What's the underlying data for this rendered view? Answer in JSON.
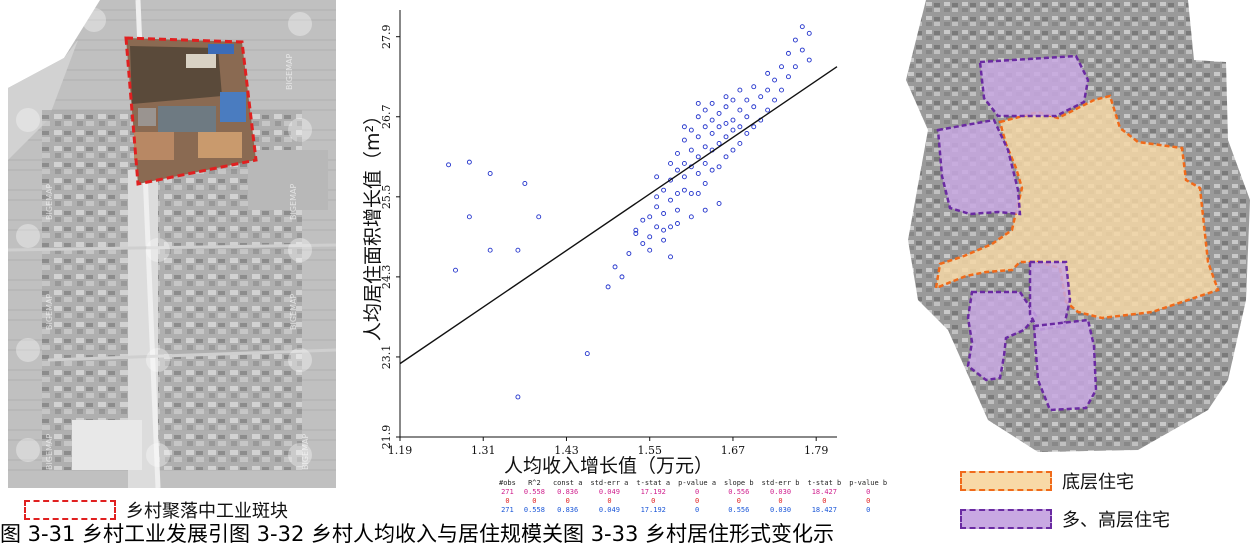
{
  "left_panel": {
    "legend_label": "乡村聚落中工业斑块",
    "watermark": "BIGEMAP",
    "colors": {
      "highlight_border": "#e02020"
    }
  },
  "right_panel": {
    "legend": [
      {
        "label": "底层住宅",
        "color": "#f8d9a6",
        "border": "#f06a1a"
      },
      {
        "label": "多、高层住宅",
        "color": "#c8a8e2",
        "border": "#6a2aa2"
      }
    ]
  },
  "chart_data": {
    "type": "scatter",
    "xlabel": "人均收入增长值（万元）",
    "ylabel": "人均居住面积增长值（m²）",
    "x_ticks": [
      1.19,
      1.31,
      1.43,
      1.55,
      1.67,
      1.79
    ],
    "y_ticks": [
      21.9,
      23.1,
      24.3,
      25.5,
      26.7,
      27.9
    ],
    "xlim": [
      1.19,
      1.82
    ],
    "ylim": [
      21.9,
      28.3
    ],
    "grid": false,
    "point_color": "#2233cc",
    "line_color": "#111111",
    "regression": {
      "intercept": 0.836,
      "slope": 0.556,
      "x0": 1.19,
      "x1": 1.82,
      "y0": 23.0,
      "y1": 27.45
    },
    "points": [
      [
        1.26,
        25.98
      ],
      [
        1.29,
        26.02
      ],
      [
        1.32,
        25.85
      ],
      [
        1.37,
        25.7
      ],
      [
        1.29,
        25.2
      ],
      [
        1.39,
        25.2
      ],
      [
        1.27,
        24.4
      ],
      [
        1.32,
        24.7
      ],
      [
        1.36,
        24.7
      ],
      [
        1.36,
        22.5
      ],
      [
        1.46,
        23.15
      ],
      [
        1.49,
        24.15
      ],
      [
        1.5,
        24.45
      ],
      [
        1.51,
        24.3
      ],
      [
        1.52,
        24.65
      ],
      [
        1.53,
        24.95
      ],
      [
        1.53,
        25.0
      ],
      [
        1.54,
        24.8
      ],
      [
        1.54,
        25.15
      ],
      [
        1.55,
        24.7
      ],
      [
        1.55,
        24.9
      ],
      [
        1.55,
        25.2
      ],
      [
        1.56,
        25.05
      ],
      [
        1.56,
        25.35
      ],
      [
        1.56,
        25.5
      ],
      [
        1.57,
        25.0
      ],
      [
        1.57,
        25.25
      ],
      [
        1.57,
        25.6
      ],
      [
        1.58,
        24.6
      ],
      [
        1.58,
        25.05
      ],
      [
        1.58,
        25.45
      ],
      [
        1.58,
        25.75
      ],
      [
        1.59,
        25.3
      ],
      [
        1.59,
        25.55
      ],
      [
        1.59,
        25.9
      ],
      [
        1.59,
        26.15
      ],
      [
        1.6,
        25.6
      ],
      [
        1.6,
        25.8
      ],
      [
        1.6,
        26.0
      ],
      [
        1.6,
        26.35
      ],
      [
        1.61,
        25.2
      ],
      [
        1.61,
        25.55
      ],
      [
        1.61,
        25.95
      ],
      [
        1.61,
        26.2
      ],
      [
        1.61,
        26.5
      ],
      [
        1.62,
        25.55
      ],
      [
        1.62,
        25.85
      ],
      [
        1.62,
        26.1
      ],
      [
        1.62,
        26.4
      ],
      [
        1.62,
        26.7
      ],
      [
        1.63,
        25.7
      ],
      [
        1.63,
        26.0
      ],
      [
        1.63,
        26.25
      ],
      [
        1.63,
        26.55
      ],
      [
        1.63,
        26.8
      ],
      [
        1.64,
        25.9
      ],
      [
        1.64,
        26.2
      ],
      [
        1.64,
        26.45
      ],
      [
        1.64,
        26.65
      ],
      [
        1.64,
        26.9
      ],
      [
        1.65,
        25.95
      ],
      [
        1.65,
        26.3
      ],
      [
        1.65,
        26.55
      ],
      [
        1.65,
        26.75
      ],
      [
        1.66,
        26.1
      ],
      [
        1.66,
        26.4
      ],
      [
        1.66,
        26.6
      ],
      [
        1.66,
        26.85
      ],
      [
        1.67,
        26.2
      ],
      [
        1.67,
        26.5
      ],
      [
        1.67,
        26.65
      ],
      [
        1.67,
        26.95
      ],
      [
        1.68,
        26.3
      ],
      [
        1.68,
        26.55
      ],
      [
        1.68,
        26.8
      ],
      [
        1.69,
        26.45
      ],
      [
        1.69,
        26.7
      ],
      [
        1.69,
        26.95
      ],
      [
        1.7,
        26.55
      ],
      [
        1.7,
        26.85
      ],
      [
        1.71,
        26.65
      ],
      [
        1.71,
        27.0
      ],
      [
        1.72,
        26.8
      ],
      [
        1.72,
        27.1
      ],
      [
        1.73,
        26.95
      ],
      [
        1.73,
        27.25
      ],
      [
        1.74,
        27.1
      ],
      [
        1.74,
        27.45
      ],
      [
        1.75,
        27.3
      ],
      [
        1.75,
        27.65
      ],
      [
        1.76,
        27.45
      ],
      [
        1.76,
        27.85
      ],
      [
        1.77,
        27.7
      ],
      [
        1.77,
        28.05
      ],
      [
        1.78,
        27.55
      ],
      [
        1.78,
        27.95
      ],
      [
        1.65,
        25.4
      ],
      [
        1.63,
        25.3
      ],
      [
        1.59,
        25.1
      ],
      [
        1.57,
        24.85
      ],
      [
        1.6,
        26.55
      ],
      [
        1.62,
        26.9
      ],
      [
        1.66,
        27.0
      ],
      [
        1.68,
        27.1
      ],
      [
        1.7,
        27.15
      ],
      [
        1.72,
        27.35
      ],
      [
        1.56,
        25.8
      ],
      [
        1.58,
        26.0
      ]
    ],
    "stats_table": {
      "headers": [
        "#obs",
        "R^2",
        "const a",
        "std-err a",
        "t-stat a",
        "p-value a",
        "slope b",
        "std-err b",
        "t-stat b",
        "p-value b"
      ],
      "rows": [
        [
          "271",
          "0.558",
          "0.836",
          "0.049",
          "17.192",
          "0",
          "0.556",
          "0.030",
          "18.427",
          "0"
        ],
        [
          "0",
          "0",
          "0",
          "0",
          "0",
          "0",
          "0",
          "0",
          "0",
          "0"
        ],
        [
          "271",
          "0.558",
          "0.836",
          "0.049",
          "17.192",
          "0",
          "0.556",
          "0.030",
          "18.427",
          "0"
        ]
      ]
    }
  },
  "caption": "图 3-31 乡村工业发展引图 3-32 乡村人均收入与居住规模关图 3-33 乡村居住形式变化示"
}
